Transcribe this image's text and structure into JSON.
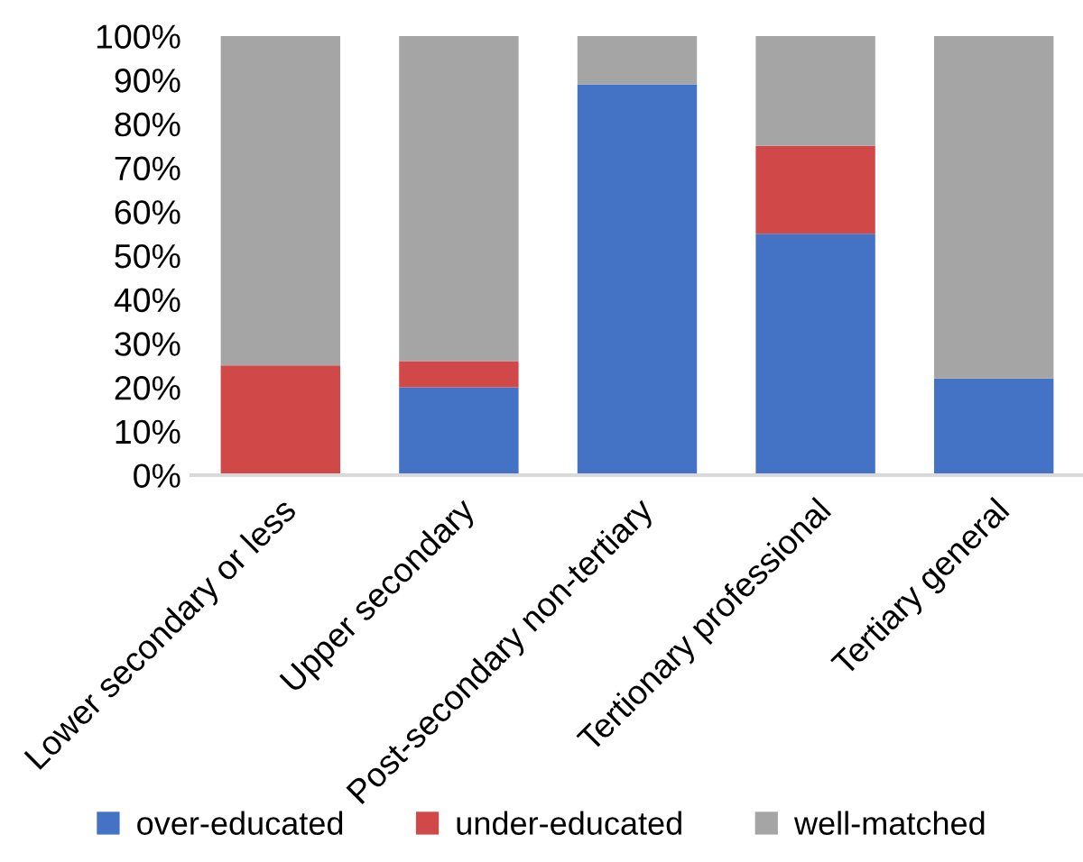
{
  "chart_data": {
    "type": "bar",
    "stacked": true,
    "categories": [
      "Lower secondary or less",
      "Upper secondary",
      "Post-secondary non-tertiary",
      "Tertionary professional",
      "Tertiary general"
    ],
    "series": [
      {
        "name": "over-educated",
        "color": "#4472c4",
        "values": [
          0,
          20,
          89,
          55,
          22
        ]
      },
      {
        "name": "under-educated",
        "color": "#d14848",
        "values": [
          25,
          6,
          0,
          20,
          0
        ]
      },
      {
        "name": "well-matched",
        "color": "#a5a5a5",
        "values": [
          75,
          74,
          11,
          25,
          78
        ]
      }
    ],
    "ylim": [
      0,
      100
    ],
    "yticks": [
      {
        "value": 0,
        "label": "0%"
      },
      {
        "value": 10,
        "label": "10%"
      },
      {
        "value": 20,
        "label": "20%"
      },
      {
        "value": 30,
        "label": "30%"
      },
      {
        "value": 40,
        "label": "40%"
      },
      {
        "value": 50,
        "label": "50%"
      },
      {
        "value": 60,
        "label": "60%"
      },
      {
        "value": 70,
        "label": "70%"
      },
      {
        "value": 80,
        "label": "80%"
      },
      {
        "value": 90,
        "label": "90%"
      },
      {
        "value": 100,
        "label": "100%"
      }
    ],
    "grid": false,
    "legend": "bottom"
  }
}
